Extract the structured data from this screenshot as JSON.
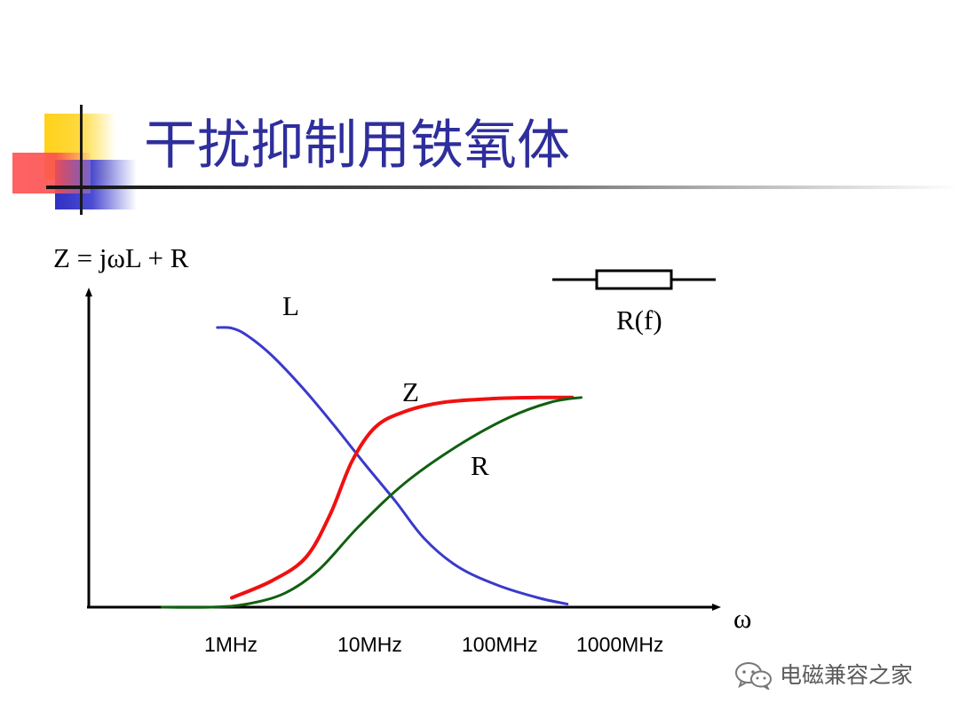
{
  "slide": {
    "title": "干扰抑制用铁氧体"
  },
  "diagram": {
    "formula": "Z = jωL + R",
    "omega_label": "ω",
    "resistor_label": "R(f)",
    "icon": "resistor-symbol-icon"
  },
  "chart_data": {
    "type": "line",
    "ylabel": "Z = jωL + R",
    "xlabel": "ω",
    "x_ticks": [
      "1MHz",
      "10MHz",
      "100MHz",
      "1000MHz"
    ],
    "x_scale": "log",
    "y_ticks": [],
    "grid": false,
    "legend": "none",
    "qualitative": true,
    "series": [
      {
        "name": "L",
        "color": "#3a3acc",
        "points": [
          [
            0.78,
            0.9
          ],
          [
            1.0,
            0.898
          ],
          [
            1.3,
            0.875
          ],
          [
            2.0,
            0.81
          ],
          [
            3.5,
            0.7
          ],
          [
            6.0,
            0.58
          ],
          [
            10.0,
            0.46
          ],
          [
            17.0,
            0.34
          ],
          [
            28.0,
            0.22
          ],
          [
            50.0,
            0.13
          ],
          [
            100.0,
            0.07
          ],
          [
            200.0,
            0.03
          ],
          [
            330.0,
            0.01
          ]
        ]
      },
      {
        "name": "Z",
        "color": "#f01010",
        "points": [
          [
            1.0,
            0.03
          ],
          [
            2.0,
            0.085
          ],
          [
            3.6,
            0.16
          ],
          [
            5.5,
            0.3
          ],
          [
            8.0,
            0.47
          ],
          [
            12.0,
            0.58
          ],
          [
            20.0,
            0.63
          ],
          [
            40.0,
            0.66
          ],
          [
            100.0,
            0.672
          ],
          [
            200.0,
            0.675
          ],
          [
            360.0,
            0.675
          ]
        ]
      },
      {
        "name": "R",
        "color": "#106010",
        "points": [
          [
            0.3,
            0.0
          ],
          [
            0.7,
            0.0
          ],
          [
            1.3,
            0.01
          ],
          [
            2.5,
            0.045
          ],
          [
            4.5,
            0.12
          ],
          [
            9.0,
            0.26
          ],
          [
            20.0,
            0.4
          ],
          [
            50.0,
            0.52
          ],
          [
            120.0,
            0.61
          ],
          [
            250.0,
            0.66
          ],
          [
            420.0,
            0.675
          ]
        ]
      }
    ]
  },
  "watermark": {
    "text": "电磁兼容之家",
    "icon": "wechat-icon"
  }
}
